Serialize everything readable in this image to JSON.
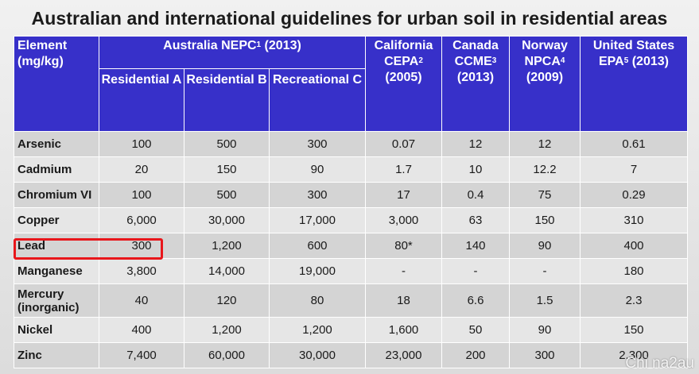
{
  "title": "Australian and international guidelines for urban soil in residential areas",
  "header": {
    "element": "Element (mg/kg)",
    "australia": "Australia NEPC",
    "australia_sup": "1",
    "australia_year": " (2013)",
    "res_a": "Residential A",
    "res_b": "Residential B",
    "rec_c": "Recreational C",
    "california_line1": "California",
    "california_line2": "CEPA",
    "california_sup": "2",
    "california_year": "(2005)",
    "canada_line1": "Canada",
    "canada_line2": "CCME",
    "canada_sup": "3",
    "canada_year": "(2013)",
    "norway_line1": "Norway",
    "norway_line2": "NPCA",
    "norway_sup": "4",
    "norway_year": "(2009)",
    "us_line1": "United States",
    "us_line2": "EPA",
    "us_sup": "5",
    "us_year": " (2013)"
  },
  "rows": [
    {
      "element": "Arsenic",
      "res_a": "100",
      "res_b": "500",
      "rec_c": "300",
      "california": "0.07",
      "canada": "12",
      "norway": "12",
      "us": "0.61"
    },
    {
      "element": "Cadmium",
      "res_a": "20",
      "res_b": "150",
      "rec_c": "90",
      "california": "1.7",
      "canada": "10",
      "norway": "12.2",
      "us": "7"
    },
    {
      "element": "Chromium VI",
      "res_a": "100",
      "res_b": "500",
      "rec_c": "300",
      "california": "17",
      "canada": "0.4",
      "norway": "75",
      "us": "0.29"
    },
    {
      "element": "Copper",
      "res_a": "6,000",
      "res_b": "30,000",
      "rec_c": "17,000",
      "california": "3,000",
      "canada": "63",
      "norway": "150",
      "us": "310"
    },
    {
      "element": "Lead",
      "res_a": "300",
      "res_b": "1,200",
      "rec_c": "600",
      "california": "80*",
      "canada": "140",
      "norway": "90",
      "us": "400"
    },
    {
      "element": "Manganese",
      "res_a": "3,800",
      "res_b": "14,000",
      "rec_c": "19,000",
      "california": "-",
      "canada": "-",
      "norway": "-",
      "us": "180"
    },
    {
      "element": "Mercury (inorganic)",
      "res_a": "40",
      "res_b": "120",
      "rec_c": "80",
      "california": "18",
      "canada": "6.6",
      "norway": "1.5",
      "us": "2.3"
    },
    {
      "element": "Nickel",
      "res_a": "400",
      "res_b": "1,200",
      "rec_c": "1,200",
      "california": "1,600",
      "canada": "50",
      "norway": "90",
      "us": "150"
    },
    {
      "element": "Zinc",
      "res_a": "7,400",
      "res_b": "60,000",
      "rec_c": "30,000",
      "california": "23,000",
      "canada": "200",
      "norway": "300",
      "us": "2,300"
    }
  ],
  "highlighted_row": "Lead",
  "watermark": "Chi na2au",
  "colors": {
    "header_bg": "#3730c9",
    "highlight": "#e8161b",
    "row_odd": "#d4d4d4",
    "row_even": "#e6e6e6"
  }
}
